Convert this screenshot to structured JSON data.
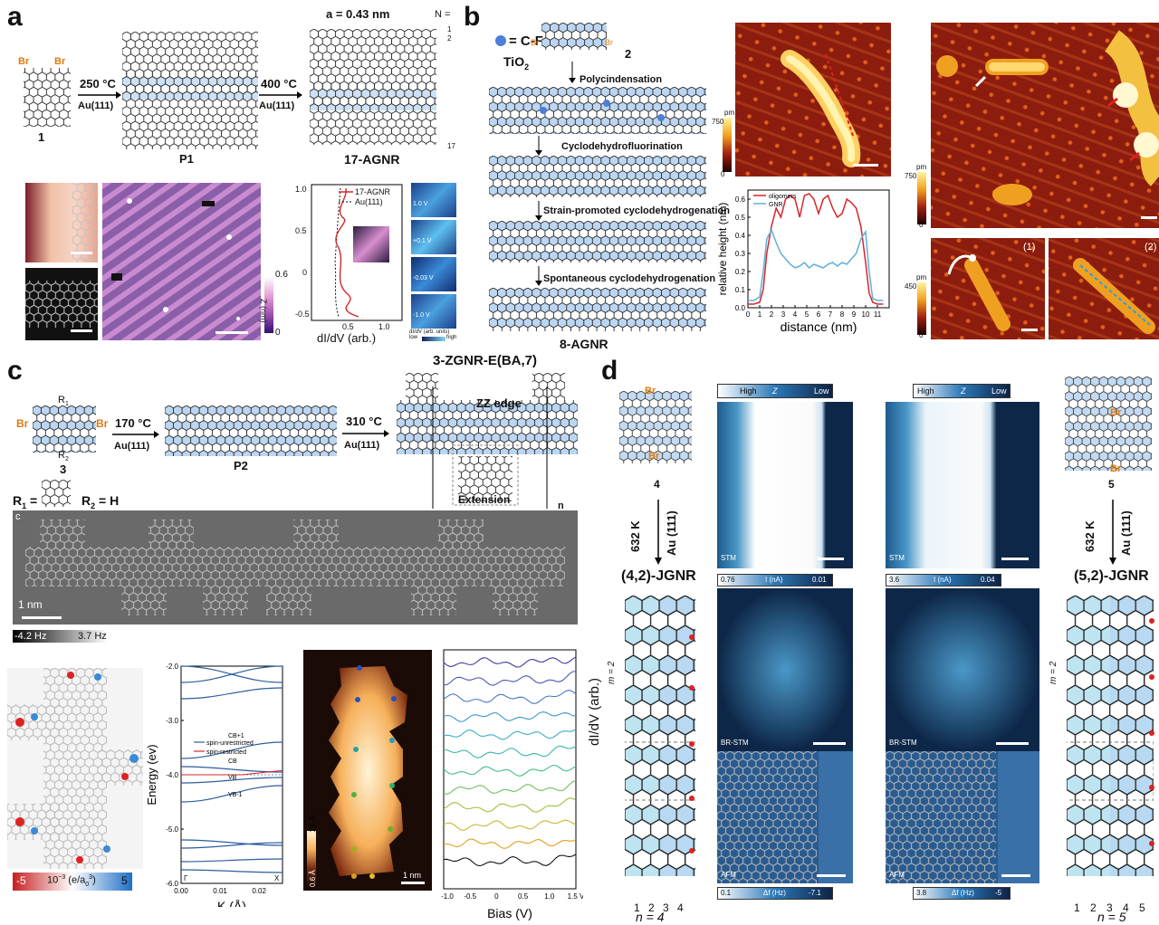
{
  "panel_a": {
    "label": "a",
    "compound_1": "1",
    "br": "Br",
    "step1_temp": "250 °C",
    "step1_sub": "Au(111)",
    "polymer": "P1",
    "step2_temp": "400 °C",
    "step2_sub": "Au(111)",
    "lattice": "a = 0.43 nm",
    "n_label": "N =",
    "n_ticks": [
      "1",
      "2",
      "17"
    ],
    "product": "17-AGNR",
    "z_scale_max": "0.6",
    "z_scale_min": "0",
    "z_unit": "Z (nm)",
    "legend_agnr": "17-AGNR",
    "legend_au": "Au(111)",
    "y_ticks": [
      "1.0",
      "0.5",
      "0",
      "-0.5"
    ],
    "x_ticks": [
      "0.5",
      "1.0"
    ],
    "xlabel": "dI/dV (arb.)",
    "map_labels": [
      "1.0 V",
      "+0.1 V",
      "-0.03 V",
      "-1.0 V"
    ],
    "map_scale_title": "dI/dV (arb. units)",
    "map_scale_low": "low",
    "map_scale_high": "high"
  },
  "panel_b": {
    "label": "b",
    "cf_legend": "= C-F",
    "substrate": "TiO",
    "substrate_sub": "2",
    "compound_2": "2",
    "br": "Br",
    "step_poly": "Polycindensation",
    "step_cdf": "Cyclodehydrofluorination",
    "step_strain": "Strain-promoted cyclodehydrogenation",
    "step_spont": "Spontaneous cyclodehydrogenation",
    "product": "8-AGNR",
    "pm1_unit": "pm",
    "pm1_max": "750",
    "pm1_min": "0",
    "pm2_unit": "pm",
    "pm2_max": "750",
    "pm2_min": "0",
    "pm3_unit": "pm",
    "pm3_max": "450",
    "pm3_min": "0",
    "inset_1": "(1)",
    "inset_2": "(2)",
    "profile": {
      "type": "line",
      "xlabel": "distance (nm)",
      "ylabel": "relative height (nm)",
      "xlim": [
        0,
        12
      ],
      "ylim": [
        0,
        0.65
      ],
      "x_ticks": [
        "0",
        "1",
        "2",
        "3",
        "4",
        "5",
        "6",
        "7",
        "8",
        "9",
        "10",
        "11"
      ],
      "y_ticks": [
        "0.0",
        "0.1",
        "0.2",
        "0.3",
        "0.4",
        "0.5",
        "0.6"
      ],
      "series": [
        {
          "name": "oligomers",
          "color": "#d6262b",
          "x": [
            0,
            0.5,
            1,
            1.3,
            1.6,
            2.0,
            2.4,
            2.8,
            3.2,
            3.6,
            4.0,
            4.4,
            4.8,
            5.2,
            5.6,
            6.0,
            6.4,
            6.8,
            7.2,
            7.6,
            8.0,
            8.4,
            8.8,
            9.2,
            9.6,
            10.0,
            10.3,
            10.6,
            11,
            11.5
          ],
          "y": [
            0.02,
            0.02,
            0.03,
            0.1,
            0.3,
            0.45,
            0.55,
            0.5,
            0.6,
            0.62,
            0.6,
            0.5,
            0.62,
            0.63,
            0.6,
            0.52,
            0.6,
            0.62,
            0.55,
            0.5,
            0.52,
            0.6,
            0.58,
            0.55,
            0.45,
            0.25,
            0.08,
            0.03,
            0.02,
            0.02
          ]
        },
        {
          "name": "GNR",
          "color": "#5fb0d8",
          "x": [
            0,
            0.5,
            1,
            1.3,
            1.6,
            2.0,
            2.4,
            2.8,
            3.2,
            3.6,
            4.0,
            4.4,
            4.8,
            5.2,
            5.6,
            6.0,
            6.4,
            6.8,
            7.2,
            7.6,
            8.0,
            8.4,
            8.8,
            9.2,
            9.6,
            10.0,
            10.3,
            10.6,
            11,
            11.5
          ],
          "y": [
            0.04,
            0.04,
            0.06,
            0.2,
            0.38,
            0.43,
            0.36,
            0.3,
            0.27,
            0.24,
            0.22,
            0.23,
            0.25,
            0.22,
            0.24,
            0.23,
            0.22,
            0.24,
            0.25,
            0.23,
            0.25,
            0.24,
            0.27,
            0.3,
            0.38,
            0.42,
            0.2,
            0.05,
            0.04,
            0.04
          ]
        }
      ]
    }
  },
  "panel_c": {
    "label": "c",
    "br": "Br",
    "compound_3": "3",
    "r1": "R",
    "r_sub_1": "1",
    "r2": "R",
    "r_sub_2": "2",
    "step1_temp": "170 °C",
    "step1_sub": "Au(111)",
    "polymer": "P2",
    "step2_temp": "310 °C",
    "step2_sub": "Au(111)",
    "product": "3-ZGNR-E(BA,7)",
    "zz_edge": "ZZ edge",
    "extension": "Extension",
    "repeat_n": "n",
    "r1_def": "R",
    "r2_def": "R",
    "r2_value": "= H",
    "afm_corner": "c",
    "afm_scale": "1 nm",
    "hz_min": "-4.2 Hz",
    "hz_max": "3.7 Hz",
    "spin_min": "-5",
    "spin_unit": "10",
    "spin_unit_rest": "(e/a",
    "spin_max": "5",
    "band": {
      "type": "line",
      "xlabel": "K (Å)",
      "ylabel": "Energy (ev)",
      "ylim": [
        -6.0,
        -2.0
      ],
      "y_ticks": [
        "-2.0",
        "-3.0",
        "-4.0",
        "-5.0",
        "-6.0"
      ],
      "x_ticks": [
        "0.00",
        "0.01",
        "0.02"
      ],
      "gamma": "Γ",
      "xpt": "X",
      "legend_unres": "spin-unrestricted",
      "legend_res": "spin-restricted",
      "labels": [
        "CB+1",
        "CB",
        "VB",
        "VB-1"
      ]
    },
    "stm_max": "1.5 Å",
    "stm_min": "0.6 Å",
    "stm_scale": "1 nm",
    "sts": {
      "type": "line",
      "xlabel": "Bias (V)",
      "x_ticks": [
        "-1.0",
        "-0.5",
        "0",
        "0.5",
        "1.0",
        "1.5 V"
      ],
      "xlim": [
        -1.0,
        1.5
      ]
    }
  },
  "panel_d": {
    "label": "d",
    "br": "Br",
    "compound_4": "4",
    "compound_5": "5",
    "temp": "632 K",
    "sub": "Au (111)",
    "left_product": "(4,2)-JGNR",
    "right_product": "(5,2)-JGNR",
    "left_n": "n = 4",
    "right_n": "n = 5",
    "m_label": "m = 2",
    "left_cols": [
      "1",
      "2",
      "3",
      "4"
    ],
    "right_cols": [
      "1",
      "2",
      "3",
      "4",
      "5"
    ],
    "ylabel": "dI/dV (arb.)",
    "z_scale_high": "High",
    "z_scale_mid": "Z",
    "z_scale_low": "Low",
    "stm": "STM",
    "brstm": "BR-STM",
    "afm": "AFM",
    "i_left_max": "0.76",
    "i_left_min": "0.01",
    "i_unit": "I (nA)",
    "i_right_max": "3.6",
    "i_right_min": "0.04",
    "df_left_max": "0.1",
    "df_left_min": "-7.1",
    "df_unit": "Δf (Hz)",
    "df_right_max": "3.8",
    "df_right_min": "-5"
  }
}
